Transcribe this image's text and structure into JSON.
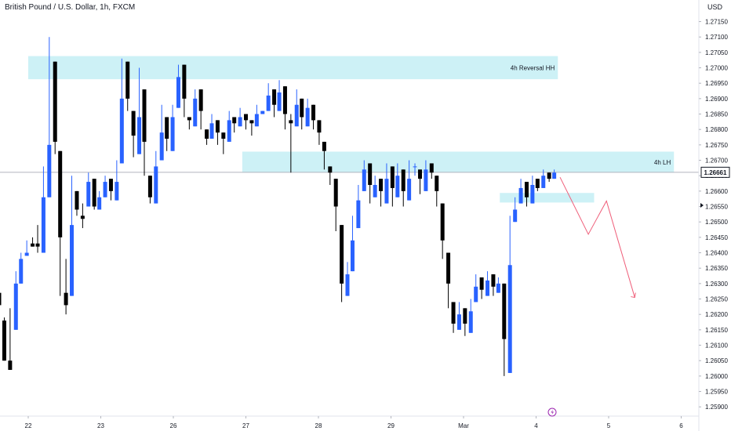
{
  "header": {
    "title": "British Pound / U.S. Dollar, 1h, FXCM",
    "currency": "USD"
  },
  "colors": {
    "bull": "#2962ff",
    "bear": "#000000",
    "zone": "#cdf1f6",
    "projection": "#ef5f7a",
    "price_line": "#b2b5be",
    "grid_border": "#e0e3eb"
  },
  "chart_data": {
    "type": "candlestick",
    "instrument": "British Pound / U.S. Dollar",
    "timeframe": "1h",
    "source": "FXCM",
    "y_range": [
      1.2587,
      1.2722
    ],
    "y_ticks": [
      "1.27150",
      "1.27100",
      "1.27050",
      "1.27000",
      "1.26950",
      "1.26900",
      "1.26850",
      "1.26800",
      "1.26750",
      "1.26700",
      "1.26650",
      "1.26600",
      "1.26550",
      "1.26500",
      "1.26450",
      "1.26400",
      "1.26350",
      "1.26300",
      "1.26250",
      "1.26200",
      "1.26150",
      "1.26100",
      "1.26050",
      "1.26000",
      "1.25950",
      "1.25900"
    ],
    "x_ticks": [
      "22",
      "23",
      "26",
      "27",
      "28",
      "29",
      "Mar",
      "4",
      "5",
      "6"
    ],
    "last_price": "1.26661",
    "last_price_value": 1.26661,
    "zones": [
      {
        "label": "4h Reversal HH",
        "from_day": 0.0,
        "to_day": 7.3,
        "top": 1.27038,
        "bottom": 1.26963
      },
      {
        "label": "4h LH",
        "from_day": 2.95,
        "to_day": 8.9,
        "top": 1.26728,
        "bottom": 1.2666
      },
      {
        "label": "",
        "from_day": 6.5,
        "to_day": 7.8,
        "top": 1.26594,
        "bottom": 1.26563
      }
    ],
    "projection_path": [
      [
        7.33,
        1.26645
      ],
      [
        7.72,
        1.2646
      ],
      [
        7.97,
        1.26568
      ],
      [
        8.36,
        1.26255
      ]
    ],
    "candles": [
      [
        -0.4,
        1.2627,
        1.2627,
        1.2623,
        1.2618,
        1.2618
      ],
      [
        -0.33,
        1.2618,
        1.2614,
        1.2605,
        1.2618,
        1.2619
      ],
      [
        -0.25,
        1.2605,
        1.2606,
        1.2602,
        1.2614,
        1.2622
      ],
      [
        -0.17,
        1.2615,
        1.263,
        1.263,
        1.2632,
        1.2634
      ],
      [
        -0.1,
        1.263,
        1.2639,
        1.2638,
        1.264,
        1.264
      ],
      [
        -0.02,
        1.2639,
        1.2643,
        1.264,
        1.2641,
        1.2644
      ],
      [
        0.06,
        1.2643,
        1.2645,
        1.2642,
        1.2643,
        1.2645
      ],
      [
        0.13,
        1.2643,
        1.264,
        1.2642,
        1.2645,
        1.2649
      ],
      [
        0.21,
        1.264,
        1.2652,
        1.2658,
        1.2666,
        1.2668
      ],
      [
        0.29,
        1.2658,
        1.2664,
        1.2675,
        1.2702,
        1.271
      ],
      [
        0.37,
        1.2702,
        1.2697,
        1.2676,
        1.2673,
        1.2672
      ],
      [
        0.44,
        1.2673,
        1.2655,
        1.2645,
        1.2627,
        1.2626
      ],
      [
        0.52,
        1.2627,
        1.262,
        1.2623,
        1.2626,
        1.2638
      ],
      [
        0.6,
        1.2626,
        1.2641,
        1.2649,
        1.266,
        1.2665
      ],
      [
        0.67,
        1.266,
        1.2657,
        1.2654,
        1.2652,
        1.2654
      ],
      [
        0.75,
        1.2652,
        1.2648,
        1.2651,
        1.2655,
        1.2656
      ],
      [
        0.83,
        1.2655,
        1.2661,
        1.2663,
        1.2664,
        1.2666
      ],
      [
        0.91,
        1.2664,
        1.2658,
        1.2655,
        1.2654,
        1.2655
      ],
      [
        0.98,
        1.2654,
        1.2657,
        1.2658,
        1.2658,
        1.266
      ],
      [
        1.06,
        1.2658,
        1.2662,
        1.2663,
        1.2664,
        1.2665
      ],
      [
        1.14,
        1.2664,
        1.2661,
        1.266,
        1.2657,
        1.2657
      ],
      [
        1.22,
        1.2657,
        1.266,
        1.2663,
        1.2669,
        1.267
      ],
      [
        1.29,
        1.2669,
        1.2686,
        1.269,
        1.2702,
        1.2703
      ],
      [
        1.37,
        1.2702,
        1.2693,
        1.269,
        1.2686,
        1.2686
      ],
      [
        1.45,
        1.2686,
        1.268,
        1.2678,
        1.2672,
        1.2671
      ],
      [
        1.53,
        1.2672,
        1.2678,
        1.2684,
        1.2693,
        1.27
      ],
      [
        1.6,
        1.2693,
        1.2683,
        1.2676,
        1.2665,
        1.2665
      ],
      [
        1.68,
        1.2665,
        1.2661,
        1.2658,
        1.2656,
        1.2656
      ],
      [
        1.76,
        1.2656,
        1.2664,
        1.2668,
        1.267,
        1.2673
      ],
      [
        1.84,
        1.267,
        1.2676,
        1.2679,
        1.2684,
        1.2688
      ],
      [
        1.91,
        1.2684,
        1.2678,
        1.2677,
        1.2673,
        1.2674
      ],
      [
        1.99,
        1.2673,
        1.2681,
        1.2684,
        1.2687,
        1.2688
      ],
      [
        2.07,
        1.2687,
        1.2693,
        1.2697,
        1.2701,
        1.2701
      ],
      [
        2.15,
        1.2701,
        1.2694,
        1.269,
        1.2684,
        1.2684
      ],
      [
        2.22,
        1.2684,
        1.2684,
        1.2683,
        1.2681,
        1.268
      ],
      [
        2.3,
        1.2681,
        1.2688,
        1.269,
        1.2693,
        1.2693
      ],
      [
        2.38,
        1.2693,
        1.2689,
        1.2686,
        1.268,
        1.268
      ],
      [
        2.46,
        1.268,
        1.2676,
        1.2677,
        1.2677,
        1.2675
      ],
      [
        2.53,
        1.2677,
        1.2679,
        1.2682,
        1.2683,
        1.2685
      ],
      [
        2.61,
        1.2683,
        1.268,
        1.2679,
        1.2679,
        1.2675
      ],
      [
        2.69,
        1.2679,
        1.2674,
        1.2677,
        1.2676,
        1.2672
      ],
      [
        2.77,
        1.2676,
        1.268,
        1.2683,
        1.2684,
        1.2686
      ],
      [
        2.84,
        1.2684,
        1.2682,
        1.2682,
        1.2681,
        1.2679
      ],
      [
        2.92,
        1.2681,
        1.2683,
        1.2684,
        1.2685,
        1.2687
      ],
      [
        3.0,
        1.2685,
        1.2684,
        1.2683,
        1.2683,
        1.268
      ],
      [
        3.08,
        1.2683,
        1.2681,
        1.2682,
        1.2681,
        1.2678
      ],
      [
        3.15,
        1.2681,
        1.2683,
        1.2685,
        1.2685,
        1.2688
      ],
      [
        3.23,
        1.2685,
        1.2686,
        1.2686,
        1.2686,
        1.2686
      ],
      [
        3.31,
        1.2686,
        1.2689,
        1.2691,
        1.2693,
        1.2695
      ],
      [
        3.39,
        1.2693,
        1.2692,
        1.2688,
        1.2686,
        1.2684
      ],
      [
        3.46,
        1.2686,
        1.269,
        1.2692,
        1.2694,
        1.2696
      ],
      [
        3.54,
        1.2694,
        1.269,
        1.2685,
        1.2683,
        1.268
      ],
      [
        3.62,
        1.2683,
        1.2685,
        1.2682,
        1.2681,
        1.2666
      ],
      [
        3.7,
        1.2681,
        1.2683,
        1.2688,
        1.269,
        1.2693
      ],
      [
        3.77,
        1.269,
        1.2688,
        1.2684,
        1.2681,
        1.268
      ],
      [
        3.85,
        1.2681,
        1.2683,
        1.2687,
        1.2688,
        1.269
      ],
      [
        3.93,
        1.2688,
        1.2686,
        1.2683,
        1.2683,
        1.268
      ],
      [
        4.01,
        1.2683,
        1.2681,
        1.2679,
        1.2676,
        1.2675
      ],
      [
        4.08,
        1.2676,
        1.2675,
        1.2673,
        1.2668,
        1.2667
      ],
      [
        4.16,
        1.2668,
        1.2667,
        1.2666,
        1.2664,
        1.2662
      ],
      [
        4.24,
        1.2664,
        1.2659,
        1.2655,
        1.2649,
        1.2647
      ],
      [
        4.32,
        1.2649,
        1.264,
        1.263,
        1.2626,
        1.2624
      ],
      [
        4.4,
        1.2626,
        1.263,
        1.2633,
        1.2634,
        1.2637
      ],
      [
        4.47,
        1.2634,
        1.2637,
        1.2644,
        1.2648,
        1.2652
      ],
      [
        4.55,
        1.2648,
        1.2652,
        1.2657,
        1.266,
        1.2662
      ],
      [
        4.63,
        1.266,
        1.2664,
        1.2667,
        1.2669,
        1.267
      ],
      [
        4.71,
        1.2669,
        1.2664,
        1.2662,
        1.2658,
        1.2656
      ],
      [
        4.78,
        1.2658,
        1.266,
        1.2662,
        1.2664,
        1.2665
      ],
      [
        4.86,
        1.2664,
        1.2662,
        1.266,
        1.2656,
        1.2655
      ],
      [
        4.94,
        1.2656,
        1.266,
        1.2664,
        1.2668,
        1.2669
      ],
      [
        5.02,
        1.2668,
        1.2664,
        1.2661,
        1.2658,
        1.2655
      ],
      [
        5.09,
        1.2658,
        1.2662,
        1.2665,
        1.2667,
        1.2669
      ],
      [
        5.17,
        1.2667,
        1.2663,
        1.266,
        1.2657,
        1.2655
      ],
      [
        5.25,
        1.2657,
        1.2661,
        1.2664,
        1.2668,
        1.267
      ],
      [
        5.33,
        1.2668,
        1.2669,
        1.2668,
        1.2667,
        1.2665
      ],
      [
        5.4,
        1.2667,
        1.2666,
        1.2664,
        1.266,
        1.2659
      ],
      [
        5.48,
        1.266,
        1.2664,
        1.2667,
        1.2669,
        1.267
      ],
      [
        5.56,
        1.2669,
        1.2668,
        1.2666,
        1.2665,
        1.2664
      ],
      [
        5.63,
        1.2665,
        1.2662,
        1.266,
        1.2656,
        1.2655
      ],
      [
        5.71,
        1.2656,
        1.2648,
        1.2644,
        1.264,
        1.2638
      ],
      [
        5.79,
        1.264,
        1.2636,
        1.263,
        1.2624,
        1.2622
      ],
      [
        5.86,
        1.2624,
        1.262,
        1.2617,
        1.2615,
        1.2614
      ],
      [
        5.94,
        1.2615,
        1.2618,
        1.262,
        1.2622,
        1.2624
      ],
      [
        6.02,
        1.2622,
        1.262,
        1.2617,
        1.2614,
        1.2613
      ],
      [
        6.1,
        1.2614,
        1.2618,
        1.2621,
        1.2624,
        1.2625
      ],
      [
        6.17,
        1.2624,
        1.2627,
        1.2629,
        1.2632,
        1.2633
      ],
      [
        6.25,
        1.2632,
        1.263,
        1.2628,
        1.2626,
        1.2625
      ],
      [
        6.33,
        1.2626,
        1.263,
        1.2631,
        1.2633,
        1.2634
      ],
      [
        6.41,
        1.2633,
        1.2631,
        1.2629,
        1.2627,
        1.2626
      ],
      [
        6.48,
        1.2627,
        1.2629,
        1.263,
        1.263,
        1.2632
      ],
      [
        6.56,
        1.263,
        1.2622,
        1.2612,
        1.2601,
        1.26
      ],
      [
        6.64,
        1.2601,
        1.262,
        1.2636,
        1.265,
        1.2652
      ],
      [
        6.71,
        1.265,
        1.2652,
        1.2654,
        1.2656,
        1.2658
      ],
      [
        6.79,
        1.2656,
        1.2658,
        1.2661,
        1.2663,
        1.2664
      ],
      [
        6.87,
        1.2663,
        1.266,
        1.2658,
        1.2656,
        1.2655
      ],
      [
        6.95,
        1.2656,
        1.2659,
        1.2662,
        1.2664,
        1.2665
      ],
      [
        7.02,
        1.2664,
        1.2662,
        1.2661,
        1.2661,
        1.266
      ],
      [
        7.1,
        1.2661,
        1.2663,
        1.2665,
        1.2666,
        1.2667
      ],
      [
        7.18,
        1.2666,
        1.2665,
        1.2664,
        1.2664,
        1.2663
      ],
      [
        7.25,
        1.2664,
        1.2665,
        1.2666,
        1.2666,
        1.2667
      ]
    ]
  }
}
